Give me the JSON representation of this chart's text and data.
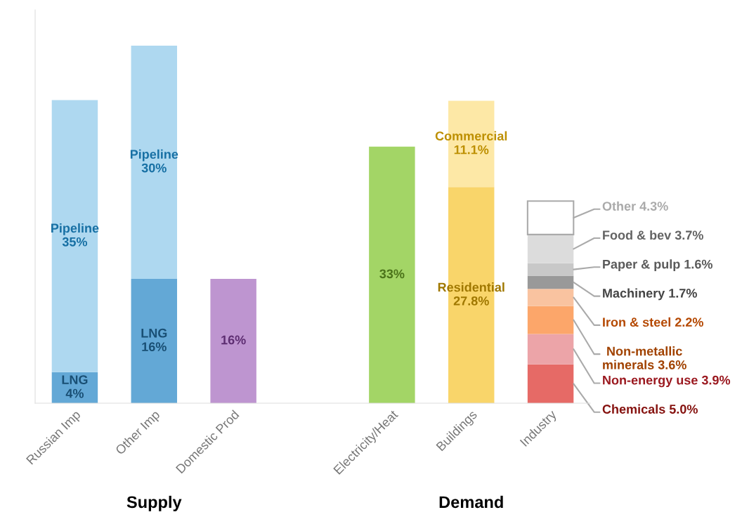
{
  "chart_data": {
    "type": "bar",
    "stacked": true,
    "legend": false,
    "grid": false,
    "tick_labels": "x",
    "categories": [
      "Russian Imp",
      "Other Imp",
      "Domestic Prod",
      null,
      "Electricity/Heat",
      "Buildings",
      "Industry"
    ],
    "series": [
      {
        "name": "LNG",
        "color": "#63a8d6",
        "values": [
          4,
          16,
          null,
          null,
          null,
          null,
          null
        ],
        "value_labels": [
          "4%",
          "16%",
          null,
          null,
          null,
          null,
          null
        ]
      },
      {
        "name": "Pipeline",
        "color": "#aed8f0",
        "values": [
          35,
          30,
          null,
          null,
          null,
          null,
          null
        ],
        "value_labels": [
          "35%",
          "30%",
          null,
          null,
          null,
          null,
          null
        ]
      },
      {
        "color": "#be95d0",
        "values": [
          null,
          null,
          16,
          null,
          null,
          null,
          null
        ],
        "value_labels": [
          null,
          null,
          "16%",
          null,
          null,
          null,
          null
        ]
      },
      {
        "color": "#a3d566",
        "values": [
          null,
          null,
          null,
          null,
          33,
          null,
          null
        ],
        "value_labels": [
          null,
          null,
          null,
          null,
          "33%",
          null,
          null
        ]
      },
      {
        "name": "Residential",
        "color": "#f9d56a",
        "values": [
          null,
          null,
          null,
          null,
          null,
          27.8,
          null
        ],
        "value_labels": [
          null,
          null,
          null,
          null,
          null,
          "27.8%",
          null
        ]
      },
      {
        "name": "Commercial",
        "color": "#fde8a6",
        "values": [
          null,
          null,
          null,
          null,
          null,
          11.1,
          null
        ],
        "value_labels": [
          null,
          null,
          null,
          null,
          null,
          "11.1%",
          null
        ]
      },
      {
        "name": "Chemicals",
        "color": "#e66a66",
        "values": [
          null,
          null,
          null,
          null,
          null,
          null,
          5.0
        ],
        "value_labels": [
          null,
          null,
          null,
          null,
          null,
          null,
          "5.0%"
        ]
      },
      {
        "name": "Non-energy use",
        "color": "#eca4a8",
        "values": [
          null,
          null,
          null,
          null,
          null,
          null,
          3.9
        ],
        "value_labels": [
          null,
          null,
          null,
          null,
          null,
          null,
          "3.9%"
        ]
      },
      {
        "name": "Non-metallic minerals",
        "color": "#fca66a",
        "values": [
          null,
          null,
          null,
          null,
          null,
          null,
          3.6
        ],
        "value_labels": [
          null,
          null,
          null,
          null,
          null,
          null,
          "3.6%"
        ]
      },
      {
        "name": "Iron & steel",
        "color": "#f9c3a0",
        "values": [
          null,
          null,
          null,
          null,
          null,
          null,
          2.2
        ],
        "value_labels": [
          null,
          null,
          null,
          null,
          null,
          null,
          "2.2%"
        ]
      },
      {
        "name": "Machinery",
        "color": "#999999",
        "values": [
          null,
          null,
          null,
          null,
          null,
          null,
          1.7
        ],
        "value_labels": [
          null,
          null,
          null,
          null,
          null,
          null,
          "1.7%"
        ]
      },
      {
        "name": "Paper & pulp",
        "color": "#c8c8c8",
        "values": [
          null,
          null,
          null,
          null,
          null,
          null,
          1.6
        ],
        "value_labels": [
          null,
          null,
          null,
          null,
          null,
          null,
          "1.6%"
        ]
      },
      {
        "name": "Food & bev",
        "color": "#dcdcdc",
        "values": [
          null,
          null,
          null,
          null,
          null,
          null,
          3.7
        ],
        "value_labels": [
          null,
          null,
          null,
          null,
          null,
          null,
          "3.7%"
        ]
      },
      {
        "name": "Other",
        "color": "#ffffff",
        "values": [
          null,
          null,
          null,
          null,
          null,
          null,
          4.3
        ],
        "value_labels": [
          null,
          null,
          null,
          null,
          null,
          null,
          "4.3%"
        ]
      }
    ],
    "annotations": [
      "Supply",
      "Demand"
    ]
  }
}
